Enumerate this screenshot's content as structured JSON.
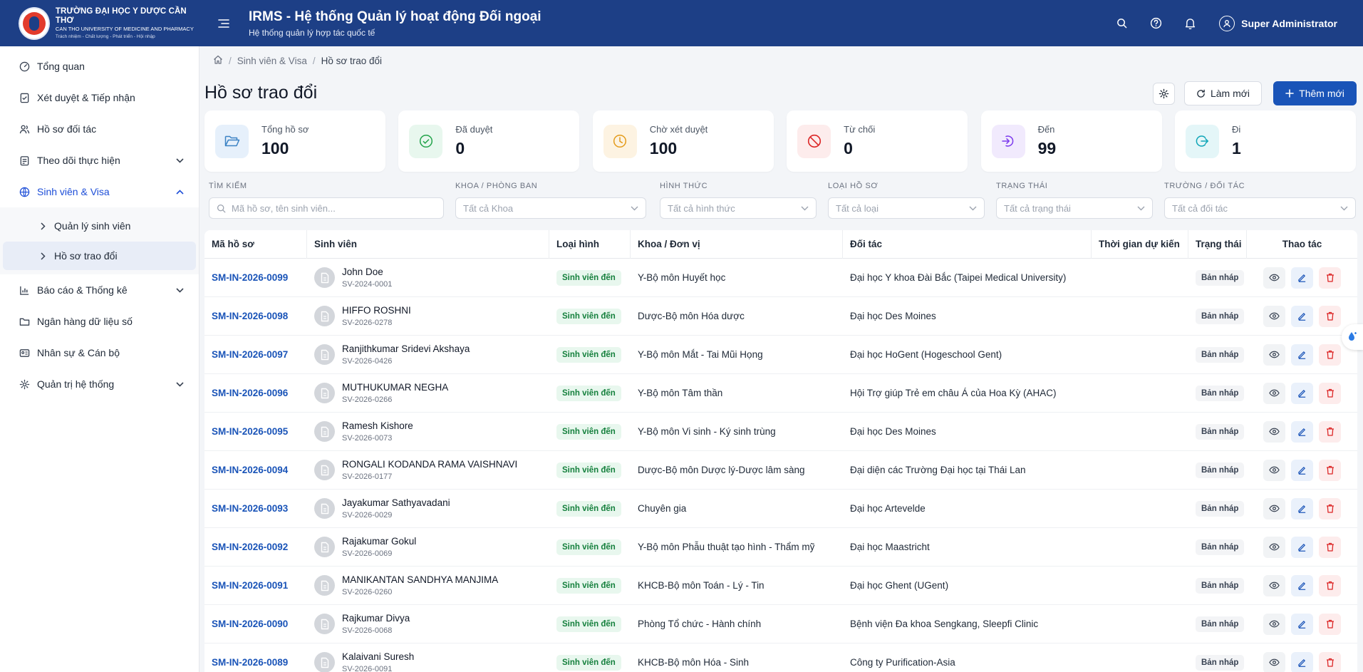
{
  "brand": {
    "line1": "TRƯỜNG ĐẠI HỌC Y DƯỢC CẦN THƠ",
    "line2": "CAN THO UNIVERSITY OF MEDICINE AND PHARMACY",
    "line3": "Trách nhiệm - Chất lượng - Phát triển - Hội nhập"
  },
  "header": {
    "title": "IRMS - Hệ thống Quản lý hoạt động Đối ngoại",
    "subtitle": "Hệ thống quản lý hợp tác quốc tế",
    "user_name": "Super Administrator"
  },
  "sidebar": {
    "items": [
      {
        "label": "Tổng quan",
        "icon": "dashboard-icon"
      },
      {
        "label": "Xét duyệt & Tiếp nhận",
        "icon": "clipboard-check-icon"
      },
      {
        "label": "Hồ sơ đối tác",
        "icon": "users-icon"
      },
      {
        "label": "Theo dõi thực hiện",
        "icon": "clipboard-icon"
      },
      {
        "label": "Sinh viên & Visa",
        "icon": "globe-icon"
      },
      {
        "label": "Báo cáo & Thống kê",
        "icon": "bar-chart-icon"
      },
      {
        "label": "Ngân hàng dữ liệu số",
        "icon": "folder-icon"
      },
      {
        "label": "Nhân sự & Cán bộ",
        "icon": "id-card-icon"
      },
      {
        "label": "Quản trị hệ thống",
        "icon": "gear-icon"
      }
    ],
    "sub_items": [
      {
        "label": "Quản lý sinh viên"
      },
      {
        "label": "Hồ sơ trao đổi"
      }
    ]
  },
  "breadcrumb": {
    "parent": "Sinh viên & Visa",
    "current": "Hồ sơ trao đổi"
  },
  "page": {
    "title": "Hồ sơ trao đổi",
    "refresh_label": "Làm mới",
    "add_label": "Thêm mới"
  },
  "stats": [
    {
      "label": "Tổng hồ sơ",
      "value": "100",
      "color": "#3b82c4",
      "bg": "#e6f0fb"
    },
    {
      "label": "Đã duyệt",
      "value": "0",
      "color": "#22a34a",
      "bg": "#e8f7ee"
    },
    {
      "label": "Chờ xét duyệt",
      "value": "100",
      "color": "#e49b1a",
      "bg": "#fdf3e2"
    },
    {
      "label": "Từ chối",
      "value": "0",
      "color": "#dc2626",
      "bg": "#fdecec"
    },
    {
      "label": "Đến",
      "value": "99",
      "color": "#7c3aed",
      "bg": "#f1eafd"
    },
    {
      "label": "Đi",
      "value": "1",
      "color": "#0ea5b7",
      "bg": "#e4f6f8"
    }
  ],
  "filters": {
    "search_label": "TÌM KIẾM",
    "search_placeholder": "Mã hồ sơ, tên sinh viên...",
    "khoa_label": "KHOA / PHÒNG BAN",
    "khoa_value": "Tất cả Khoa",
    "hinhthuc_label": "HÌNH THỨC",
    "hinhthuc_value": "Tất cả hình thức",
    "loai_label": "LOẠI HỒ SƠ",
    "loai_value": "Tất cả loại",
    "trangthai_label": "TRẠNG THÁI",
    "trangthai_value": "Tất cả trạng thái",
    "truong_label": "TRƯỜNG / ĐỐI TÁC",
    "truong_value": "Tất cả đối tác"
  },
  "table": {
    "columns": [
      "Mã hồ sơ",
      "Sinh viên",
      "Loại hình",
      "Khoa / Đơn vị",
      "Đối tác",
      "Thời gian dự kiến",
      "Trạng thái",
      "Thao tác"
    ],
    "rows": [
      {
        "code": "SM-IN-2026-0099",
        "name": "John Doe",
        "sid": "SV-2024-0001",
        "type": "Sinh viên đến",
        "unit": "Y-Bộ môn Huyết học",
        "partner": "Đại học Y khoa Đài Bắc (Taipei Medical University)",
        "time": "",
        "status": "Bản nháp"
      },
      {
        "code": "SM-IN-2026-0098",
        "name": "HIFFO ROSHNI",
        "sid": "SV-2026-0278",
        "type": "Sinh viên đến",
        "unit": "Dược-Bộ môn Hóa dược",
        "partner": "Đại học Des Moines",
        "time": "",
        "status": "Bản nháp"
      },
      {
        "code": "SM-IN-2026-0097",
        "name": "Ranjithkumar Sridevi Akshaya",
        "sid": "SV-2026-0426",
        "type": "Sinh viên đến",
        "unit": "Y-Bộ môn Mắt - Tai Mũi Họng",
        "partner": "Đại học HoGent (Hogeschool Gent)",
        "time": "",
        "status": "Bản nháp"
      },
      {
        "code": "SM-IN-2026-0096",
        "name": "MUTHUKUMAR NEGHA",
        "sid": "SV-2026-0266",
        "type": "Sinh viên đến",
        "unit": "Y-Bộ môn Tâm thần",
        "partner": "Hội Trợ giúp Trẻ em châu Á của Hoa Kỳ (AHAC)",
        "time": "",
        "status": "Bản nháp"
      },
      {
        "code": "SM-IN-2026-0095",
        "name": "Ramesh Kishore",
        "sid": "SV-2026-0073",
        "type": "Sinh viên đến",
        "unit": "Y-Bộ môn Vi sinh - Ký sinh trùng",
        "partner": "Đại học Des Moines",
        "time": "",
        "status": "Bản nháp"
      },
      {
        "code": "SM-IN-2026-0094",
        "name": "RONGALI KODANDA RAMA VAISHNAVI",
        "sid": "SV-2026-0177",
        "type": "Sinh viên đến",
        "unit": "Dược-Bộ môn Dược lý-Dược lâm sàng",
        "partner": "Đại diện các Trường Đại học tại Thái Lan",
        "time": "",
        "status": "Bản nháp"
      },
      {
        "code": "SM-IN-2026-0093",
        "name": "Jayakumar Sathyavadani",
        "sid": "SV-2026-0029",
        "type": "Sinh viên đến",
        "unit": "Chuyên gia",
        "partner": "Đại học Artevelde",
        "time": "",
        "status": "Bản nháp"
      },
      {
        "code": "SM-IN-2026-0092",
        "name": "Rajakumar Gokul",
        "sid": "SV-2026-0069",
        "type": "Sinh viên đến",
        "unit": "Y-Bộ môn Phẫu thuật tạo hình - Thẩm mỹ",
        "partner": "Đại học Maastricht",
        "time": "",
        "status": "Bản nháp"
      },
      {
        "code": "SM-IN-2026-0091",
        "name": "MANIKANTAN SANDHYA MANJIMA",
        "sid": "SV-2026-0260",
        "type": "Sinh viên đến",
        "unit": "KHCB-Bộ môn Toán - Lý - Tin",
        "partner": "Đại học Ghent (UGent)",
        "time": "",
        "status": "Bản nháp"
      },
      {
        "code": "SM-IN-2026-0090",
        "name": "Rajkumar Divya",
        "sid": "SV-2026-0068",
        "type": "Sinh viên đến",
        "unit": "Phòng Tổ chức - Hành chính",
        "partner": "Bệnh viện Đa khoa Sengkang, Sleepfi Clinic",
        "time": "",
        "status": "Bản nháp"
      },
      {
        "code": "SM-IN-2026-0089",
        "name": "Kalaivani Suresh",
        "sid": "SV-2026-0091",
        "type": "Sinh viên đến",
        "unit": "KHCB-Bộ môn Hóa - Sinh",
        "partner": "Công ty Purification-Asia",
        "time": "",
        "status": "Bản nháp"
      }
    ]
  }
}
